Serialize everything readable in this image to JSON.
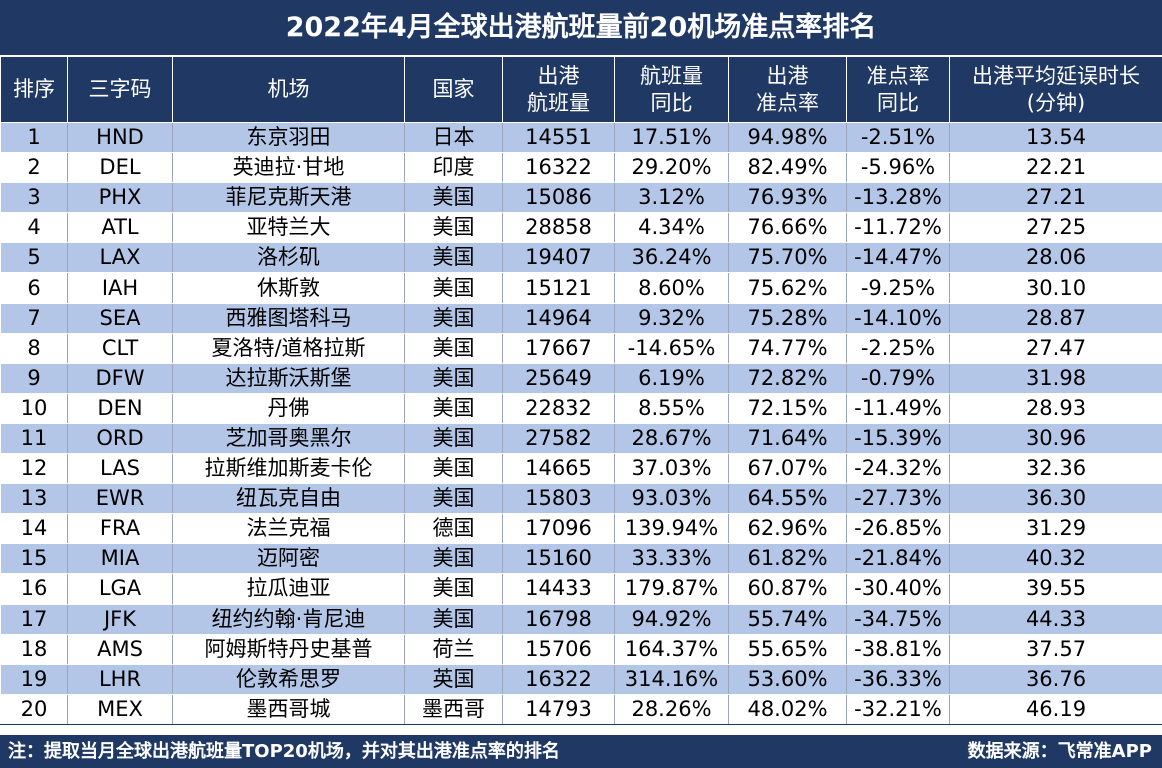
{
  "title": "2022年4月全球出港航班量前20机场准点率排名",
  "headers": [
    [
      "排序"
    ],
    [
      "三字码"
    ],
    [
      "机场"
    ],
    [
      "国家"
    ],
    [
      "出港",
      "航班量"
    ],
    [
      "航班量",
      "同比"
    ],
    [
      "出港",
      "准点率"
    ],
    [
      "准点率",
      "同比"
    ],
    [
      "出港平均延误时长",
      "(分钟)"
    ]
  ],
  "rows": [
    [
      "1",
      "HND",
      "东京羽田",
      "日本",
      "14551",
      "17.51%",
      "94.98%",
      "-2.51%",
      "13.54"
    ],
    [
      "2",
      "DEL",
      "英迪拉·甘地",
      "印度",
      "16322",
      "29.20%",
      "82.49%",
      "-5.96%",
      "22.21"
    ],
    [
      "3",
      "PHX",
      "菲尼克斯天港",
      "美国",
      "15086",
      "3.12%",
      "76.93%",
      "-13.28%",
      "27.21"
    ],
    [
      "4",
      "ATL",
      "亚特兰大",
      "美国",
      "28858",
      "4.34%",
      "76.66%",
      "-11.72%",
      "27.25"
    ],
    [
      "5",
      "LAX",
      "洛杉矶",
      "美国",
      "19407",
      "36.24%",
      "75.70%",
      "-14.47%",
      "28.06"
    ],
    [
      "6",
      "IAH",
      "休斯敦",
      "美国",
      "15121",
      "8.60%",
      "75.62%",
      "-9.25%",
      "30.10"
    ],
    [
      "7",
      "SEA",
      "西雅图塔科马",
      "美国",
      "14964",
      "9.32%",
      "75.28%",
      "-14.10%",
      "28.87"
    ],
    [
      "8",
      "CLT",
      "夏洛特/道格拉斯",
      "美国",
      "17667",
      "-14.65%",
      "74.77%",
      "-2.25%",
      "27.47"
    ],
    [
      "9",
      "DFW",
      "达拉斯沃斯堡",
      "美国",
      "25649",
      "6.19%",
      "72.82%",
      "-0.79%",
      "31.98"
    ],
    [
      "10",
      "DEN",
      "丹佛",
      "美国",
      "22832",
      "8.55%",
      "72.15%",
      "-11.49%",
      "28.93"
    ],
    [
      "11",
      "ORD",
      "芝加哥奥黑尔",
      "美国",
      "27582",
      "28.67%",
      "71.64%",
      "-15.39%",
      "30.96"
    ],
    [
      "12",
      "LAS",
      "拉斯维加斯麦卡伦",
      "美国",
      "14665",
      "37.03%",
      "67.07%",
      "-24.32%",
      "32.36"
    ],
    [
      "13",
      "EWR",
      "纽瓦克自由",
      "美国",
      "15803",
      "93.03%",
      "64.55%",
      "-27.73%",
      "36.30"
    ],
    [
      "14",
      "FRA",
      "法兰克福",
      "德国",
      "17096",
      "139.94%",
      "62.96%",
      "-26.85%",
      "31.29"
    ],
    [
      "15",
      "MIA",
      "迈阿密",
      "美国",
      "15160",
      "33.33%",
      "61.82%",
      "-21.84%",
      "40.32"
    ],
    [
      "16",
      "LGA",
      "拉瓜迪亚",
      "美国",
      "14433",
      "179.87%",
      "60.87%",
      "-30.40%",
      "39.55"
    ],
    [
      "17",
      "JFK",
      "纽约约翰·肯尼迪",
      "美国",
      "16798",
      "94.92%",
      "55.74%",
      "-34.75%",
      "44.33"
    ],
    [
      "18",
      "AMS",
      "阿姆斯特丹史基普",
      "荷兰",
      "15706",
      "164.37%",
      "55.65%",
      "-38.81%",
      "37.57"
    ],
    [
      "19",
      "LHR",
      "伦敦希思罗",
      "英国",
      "16322",
      "314.16%",
      "53.60%",
      "-36.33%",
      "36.76"
    ],
    [
      "20",
      "MEX",
      "墨西哥城",
      "墨西哥",
      "14793",
      "28.26%",
      "48.02%",
      "-32.21%",
      "46.19"
    ]
  ],
  "footer": {
    "note": "注：提取当月全球出港航班量TOP20机场，并对其出港准点率的排名",
    "source": "数据来源：飞常准APP"
  },
  "colors": {
    "header_bg": "#1f3864",
    "stripe": "#b4c6e7",
    "white": "#ffffff"
  }
}
